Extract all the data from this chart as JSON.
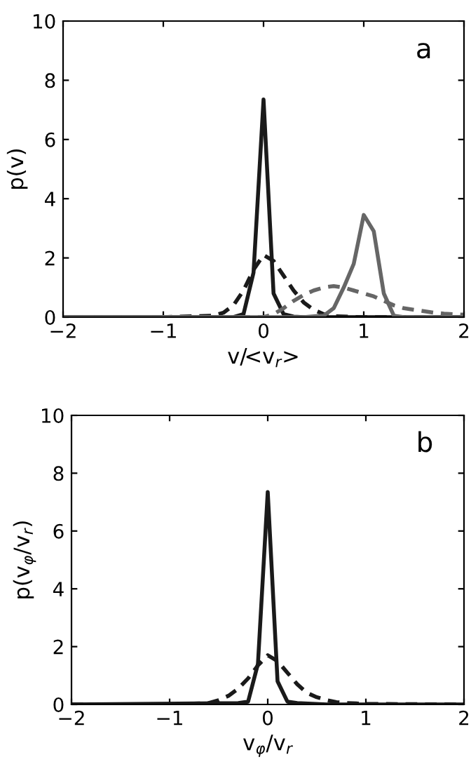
{
  "chart_data": [
    {
      "type": "line",
      "xlabel": "v/<v$_{r}$>",
      "ylabel": "p(v)",
      "annotations": [
        "a"
      ],
      "xlim": [
        -2,
        2
      ],
      "ylim": [
        0,
        10
      ],
      "xticks": [
        -2,
        -1,
        0,
        1,
        2
      ],
      "yticks": [
        0,
        2,
        4,
        6,
        8,
        10
      ],
      "grid": false,
      "legend": false,
      "series": [
        {
          "color": "#1a1a1a",
          "line_style": "solid",
          "x": [
            -2,
            -0.3,
            -0.2,
            -0.1,
            0,
            0.1,
            0.2,
            0.3,
            0.4,
            2
          ],
          "values": [
            0,
            0,
            0.1,
            1.5,
            7.35,
            0.8,
            0.1,
            0.02,
            0,
            0
          ]
        },
        {
          "color": "#1a1a1a",
          "line_style": "dashed",
          "x": [
            -2,
            -1,
            -0.5,
            -0.4,
            -0.3,
            -0.2,
            -0.1,
            0,
            0.1,
            0.2,
            0.3,
            0.4,
            0.5,
            0.6,
            0.7,
            1,
            2
          ],
          "values": [
            0,
            0,
            0.05,
            0.15,
            0.4,
            0.9,
            1.6,
            2.1,
            1.9,
            1.4,
            0.9,
            0.5,
            0.25,
            0.1,
            0.03,
            0,
            0
          ]
        },
        {
          "color": "#666666",
          "line_style": "solid",
          "x": [
            -2,
            0.4,
            0.6,
            0.7,
            0.8,
            0.9,
            1.0,
            1.1,
            1.2,
            1.3,
            1.4,
            2
          ],
          "values": [
            0,
            0,
            0.05,
            0.3,
            1.0,
            1.8,
            3.45,
            2.9,
            0.8,
            0.05,
            0,
            0
          ]
        },
        {
          "color": "#666666",
          "line_style": "dashed",
          "x": [
            -2,
            0,
            0.1,
            0.2,
            0.3,
            0.4,
            0.5,
            0.6,
            0.7,
            0.8,
            0.9,
            1.0,
            1.1,
            1.2,
            1.3,
            1.4,
            1.5,
            1.6,
            1.7,
            1.8,
            1.9,
            2.0
          ],
          "values": [
            0,
            0,
            0.1,
            0.3,
            0.55,
            0.75,
            0.9,
            1.0,
            1.05,
            1.0,
            0.9,
            0.8,
            0.7,
            0.55,
            0.4,
            0.3,
            0.25,
            0.2,
            0.15,
            0.12,
            0.1,
            0.08
          ]
        }
      ]
    },
    {
      "type": "line",
      "xlabel": "v$_{φ}$/v$_{r}$",
      "ylabel": "p(v$_{φ}$/v$_{r}$)",
      "annotations": [
        "b"
      ],
      "xlim": [
        -2,
        2
      ],
      "ylim": [
        0,
        10
      ],
      "xticks": [
        -2,
        -1,
        0,
        1,
        2
      ],
      "yticks": [
        0,
        2,
        4,
        6,
        8,
        10
      ],
      "grid": false,
      "legend": false,
      "series": [
        {
          "color": "#1a1a1a",
          "line_style": "solid",
          "x": [
            -2,
            -0.3,
            -0.2,
            -0.1,
            0,
            0.1,
            0.2,
            0.3,
            0.6,
            2
          ],
          "values": [
            0,
            0.05,
            0.1,
            1.4,
            7.35,
            0.8,
            0.1,
            0.05,
            0,
            0
          ]
        },
        {
          "color": "#1a1a1a",
          "line_style": "dashed",
          "x": [
            -2,
            -1,
            -0.6,
            -0.5,
            -0.4,
            -0.3,
            -0.2,
            -0.1,
            0,
            0.1,
            0.2,
            0.3,
            0.4,
            0.5,
            0.6,
            0.7,
            0.8,
            1,
            2
          ],
          "values": [
            0,
            0,
            0.05,
            0.15,
            0.3,
            0.55,
            0.9,
            1.35,
            1.7,
            1.5,
            1.1,
            0.7,
            0.4,
            0.25,
            0.15,
            0.08,
            0.05,
            0.02,
            0
          ]
        }
      ]
    }
  ]
}
